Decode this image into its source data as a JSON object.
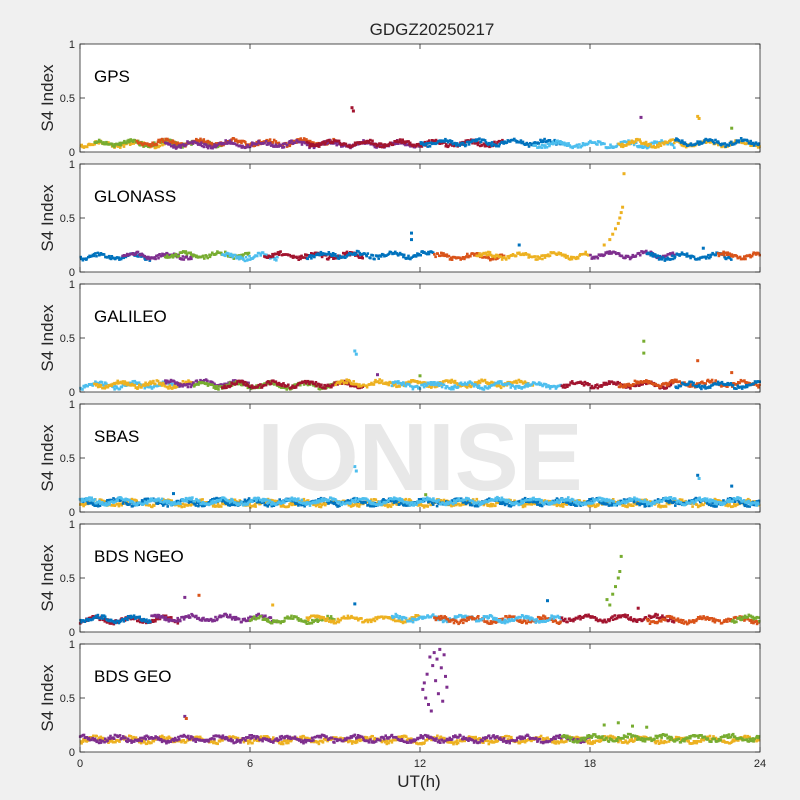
{
  "chart_data": {
    "type": "scatter",
    "title": "GDGZ20250217",
    "xlabel": "UT(h)",
    "xlim": [
      0,
      24
    ],
    "x_ticks": [
      0,
      6,
      12,
      18,
      24
    ],
    "watermark": "IONISE",
    "palette": [
      "#0072BD",
      "#D95319",
      "#EDB120",
      "#7E2F8E",
      "#77AC30",
      "#4DBEEE",
      "#A2142F"
    ],
    "panels": [
      {
        "name": "GPS",
        "ylabel": "S4 Index",
        "ylim": [
          0,
          1
        ],
        "y_ticks": [
          0,
          0.5,
          1
        ],
        "baseline": 0.08,
        "segments": [
          {
            "x0": 0,
            "x1": 3,
            "color": "#EDB120"
          },
          {
            "x0": 0.5,
            "x1": 5,
            "color": "#77AC30"
          },
          {
            "x0": 2,
            "x1": 9,
            "color": "#D95319"
          },
          {
            "x0": 3,
            "x1": 12,
            "color": "#7E2F8E"
          },
          {
            "x0": 8,
            "x1": 15,
            "color": "#A2142F"
          },
          {
            "x0": 12,
            "x1": 17,
            "color": "#0072BD"
          },
          {
            "x0": 16,
            "x1": 21,
            "color": "#4DBEEE"
          },
          {
            "x0": 19,
            "x1": 24,
            "color": "#EDB120"
          },
          {
            "x0": 21,
            "x1": 24,
            "color": "#0072BD"
          }
        ],
        "outliers": [
          {
            "x": 9.6,
            "y": 0.41,
            "color": "#A2142F"
          },
          {
            "x": 9.65,
            "y": 0.38,
            "color": "#A2142F"
          },
          {
            "x": 19.8,
            "y": 0.32,
            "color": "#7E2F8E"
          },
          {
            "x": 21.8,
            "y": 0.33,
            "color": "#EDB120"
          },
          {
            "x": 21.85,
            "y": 0.31,
            "color": "#EDB120"
          },
          {
            "x": 23.0,
            "y": 0.22,
            "color": "#77AC30"
          }
        ]
      },
      {
        "name": "GLONASS",
        "ylabel": "S4 Index",
        "ylim": [
          0,
          1
        ],
        "y_ticks": [
          0,
          0.5,
          1
        ],
        "baseline": 0.15,
        "segments": [
          {
            "x0": 0,
            "x1": 2.5,
            "color": "#0072BD"
          },
          {
            "x0": 1.5,
            "x1": 4,
            "color": "#7E2F8E"
          },
          {
            "x0": 3,
            "x1": 6,
            "color": "#77AC30"
          },
          {
            "x0": 5,
            "x1": 7,
            "color": "#4DBEEE"
          },
          {
            "x0": 6.5,
            "x1": 10,
            "color": "#A2142F"
          },
          {
            "x0": 8,
            "x1": 12.5,
            "color": "#0072BD"
          },
          {
            "x0": 12.5,
            "x1": 15,
            "color": "#D95319"
          },
          {
            "x0": 14,
            "x1": 18,
            "color": "#EDB120"
          },
          {
            "x0": 18,
            "x1": 21,
            "color": "#7E2F8E"
          },
          {
            "x0": 20,
            "x1": 23,
            "color": "#0072BD"
          },
          {
            "x0": 22.5,
            "x1": 24,
            "color": "#D95319"
          }
        ],
        "outliers": [
          {
            "x": 11.7,
            "y": 0.36,
            "color": "#0072BD"
          },
          {
            "x": 11.7,
            "y": 0.3,
            "color": "#0072BD"
          },
          {
            "x": 15.5,
            "y": 0.25,
            "color": "#0072BD"
          },
          {
            "x": 18.5,
            "y": 0.25,
            "color": "#EDB120"
          },
          {
            "x": 18.7,
            "y": 0.3,
            "color": "#EDB120"
          },
          {
            "x": 18.8,
            "y": 0.35,
            "color": "#EDB120"
          },
          {
            "x": 18.9,
            "y": 0.4,
            "color": "#EDB120"
          },
          {
            "x": 19.0,
            "y": 0.45,
            "color": "#EDB120"
          },
          {
            "x": 19.05,
            "y": 0.5,
            "color": "#EDB120"
          },
          {
            "x": 19.1,
            "y": 0.55,
            "color": "#EDB120"
          },
          {
            "x": 19.15,
            "y": 0.6,
            "color": "#EDB120"
          },
          {
            "x": 19.2,
            "y": 0.91,
            "color": "#EDB120"
          },
          {
            "x": 22.0,
            "y": 0.22,
            "color": "#0072BD"
          }
        ]
      },
      {
        "name": "GALILEO",
        "ylabel": "S4 Index",
        "ylim": [
          0,
          1
        ],
        "y_ticks": [
          0,
          0.5,
          1
        ],
        "baseline": 0.07,
        "segments": [
          {
            "x0": 0,
            "x1": 3.5,
            "color": "#4DBEEE"
          },
          {
            "x0": 0.5,
            "x1": 4,
            "color": "#EDB120"
          },
          {
            "x0": 3,
            "x1": 6,
            "color": "#7E2F8E"
          },
          {
            "x0": 4,
            "x1": 9,
            "color": "#77AC30"
          },
          {
            "x0": 5,
            "x1": 10,
            "color": "#A2142F"
          },
          {
            "x0": 9,
            "x1": 16,
            "color": "#EDB120"
          },
          {
            "x0": 11,
            "x1": 17,
            "color": "#4DBEEE"
          },
          {
            "x0": 17,
            "x1": 21,
            "color": "#A2142F"
          },
          {
            "x0": 19,
            "x1": 24,
            "color": "#D95319"
          },
          {
            "x0": 21,
            "x1": 24,
            "color": "#0072BD"
          }
        ],
        "outliers": [
          {
            "x": 9.7,
            "y": 0.38,
            "color": "#4DBEEE"
          },
          {
            "x": 9.75,
            "y": 0.35,
            "color": "#4DBEEE"
          },
          {
            "x": 10.5,
            "y": 0.16,
            "color": "#7E2F8E"
          },
          {
            "x": 12.0,
            "y": 0.15,
            "color": "#77AC30"
          },
          {
            "x": 19.9,
            "y": 0.47,
            "color": "#77AC30"
          },
          {
            "x": 19.9,
            "y": 0.36,
            "color": "#77AC30"
          },
          {
            "x": 21.8,
            "y": 0.29,
            "color": "#D95319"
          },
          {
            "x": 23.0,
            "y": 0.18,
            "color": "#D95319"
          }
        ]
      },
      {
        "name": "SBAS",
        "ylabel": "S4 Index",
        "ylim": [
          0,
          1
        ],
        "y_ticks": [
          0,
          0.5,
          1
        ],
        "baseline": 0.09,
        "segments": [
          {
            "x0": 0,
            "x1": 24,
            "color": "#EDB120"
          },
          {
            "x0": 0,
            "x1": 24,
            "color": "#0072BD"
          },
          {
            "x0": 0,
            "x1": 24,
            "color": "#4DBEEE"
          }
        ],
        "outliers": [
          {
            "x": 9.7,
            "y": 0.42,
            "color": "#4DBEEE"
          },
          {
            "x": 9.75,
            "y": 0.38,
            "color": "#4DBEEE"
          },
          {
            "x": 3.3,
            "y": 0.17,
            "color": "#0072BD"
          },
          {
            "x": 12.2,
            "y": 0.16,
            "color": "#77AC30"
          },
          {
            "x": 21.8,
            "y": 0.34,
            "color": "#0072BD"
          },
          {
            "x": 21.85,
            "y": 0.31,
            "color": "#4DBEEE"
          },
          {
            "x": 23.0,
            "y": 0.24,
            "color": "#0072BD"
          }
        ]
      },
      {
        "name": "BDS NGEO",
        "ylabel": "S4 Index",
        "ylim": [
          0,
          1
        ],
        "y_ticks": [
          0,
          0.5,
          1
        ],
        "baseline": 0.12,
        "segments": [
          {
            "x0": 0,
            "x1": 3.5,
            "color": "#A2142F"
          },
          {
            "x0": 0,
            "x1": 2.5,
            "color": "#0072BD"
          },
          {
            "x0": 2.5,
            "x1": 7,
            "color": "#7E2F8E"
          },
          {
            "x0": 6,
            "x1": 9,
            "color": "#77AC30"
          },
          {
            "x0": 8,
            "x1": 12,
            "color": "#EDB120"
          },
          {
            "x0": 11,
            "x1": 14,
            "color": "#4DBEEE"
          },
          {
            "x0": 12.5,
            "x1": 17,
            "color": "#D95319"
          },
          {
            "x0": 14,
            "x1": 17,
            "color": "#4DBEEE"
          },
          {
            "x0": 17,
            "x1": 21,
            "color": "#A2142F"
          },
          {
            "x0": 20,
            "x1": 24,
            "color": "#D95319"
          },
          {
            "x0": 23,
            "x1": 24,
            "color": "#77AC30"
          }
        ],
        "outliers": [
          {
            "x": 3.7,
            "y": 0.32,
            "color": "#7E2F8E"
          },
          {
            "x": 4.2,
            "y": 0.34,
            "color": "#D95319"
          },
          {
            "x": 6.8,
            "y": 0.25,
            "color": "#EDB120"
          },
          {
            "x": 9.7,
            "y": 0.26,
            "color": "#0072BD"
          },
          {
            "x": 16.5,
            "y": 0.29,
            "color": "#0072BD"
          },
          {
            "x": 18.6,
            "y": 0.3,
            "color": "#77AC30"
          },
          {
            "x": 18.7,
            "y": 0.25,
            "color": "#77AC30"
          },
          {
            "x": 18.8,
            "y": 0.35,
            "color": "#77AC30"
          },
          {
            "x": 18.9,
            "y": 0.42,
            "color": "#77AC30"
          },
          {
            "x": 19.0,
            "y": 0.5,
            "color": "#77AC30"
          },
          {
            "x": 19.05,
            "y": 0.56,
            "color": "#77AC30"
          },
          {
            "x": 19.1,
            "y": 0.7,
            "color": "#77AC30"
          },
          {
            "x": 19.7,
            "y": 0.22,
            "color": "#A2142F"
          }
        ]
      },
      {
        "name": "BDS GEO",
        "ylabel": "S4 Index",
        "ylim": [
          0,
          1
        ],
        "y_ticks": [
          0,
          0.5,
          1
        ],
        "baseline": 0.12,
        "segments": [
          {
            "x0": 0,
            "x1": 24,
            "color": "#EDB120"
          },
          {
            "x0": 0,
            "x1": 18,
            "color": "#7E2F8E"
          },
          {
            "x0": 17,
            "x1": 24,
            "color": "#77AC30"
          }
        ],
        "outliers": [
          {
            "x": 3.7,
            "y": 0.33,
            "color": "#7E2F8E"
          },
          {
            "x": 3.75,
            "y": 0.31,
            "color": "#D95319"
          },
          {
            "x": 12.1,
            "y": 0.58,
            "color": "#7E2F8E"
          },
          {
            "x": 12.15,
            "y": 0.64,
            "color": "#7E2F8E"
          },
          {
            "x": 12.2,
            "y": 0.5,
            "color": "#7E2F8E"
          },
          {
            "x": 12.25,
            "y": 0.72,
            "color": "#7E2F8E"
          },
          {
            "x": 12.3,
            "y": 0.44,
            "color": "#7E2F8E"
          },
          {
            "x": 12.35,
            "y": 0.88,
            "color": "#7E2F8E"
          },
          {
            "x": 12.4,
            "y": 0.38,
            "color": "#7E2F8E"
          },
          {
            "x": 12.45,
            "y": 0.8,
            "color": "#7E2F8E"
          },
          {
            "x": 12.5,
            "y": 0.92,
            "color": "#7E2F8E"
          },
          {
            "x": 12.55,
            "y": 0.66,
            "color": "#7E2F8E"
          },
          {
            "x": 12.6,
            "y": 0.86,
            "color": "#7E2F8E"
          },
          {
            "x": 12.65,
            "y": 0.54,
            "color": "#7E2F8E"
          },
          {
            "x": 12.7,
            "y": 0.95,
            "color": "#7E2F8E"
          },
          {
            "x": 12.75,
            "y": 0.78,
            "color": "#7E2F8E"
          },
          {
            "x": 12.8,
            "y": 0.47,
            "color": "#7E2F8E"
          },
          {
            "x": 12.85,
            "y": 0.9,
            "color": "#7E2F8E"
          },
          {
            "x": 12.9,
            "y": 0.7,
            "color": "#7E2F8E"
          },
          {
            "x": 12.95,
            "y": 0.6,
            "color": "#7E2F8E"
          },
          {
            "x": 18.5,
            "y": 0.25,
            "color": "#77AC30"
          },
          {
            "x": 19.0,
            "y": 0.27,
            "color": "#77AC30"
          },
          {
            "x": 19.5,
            "y": 0.24,
            "color": "#77AC30"
          },
          {
            "x": 20.0,
            "y": 0.23,
            "color": "#77AC30"
          }
        ]
      }
    ]
  }
}
